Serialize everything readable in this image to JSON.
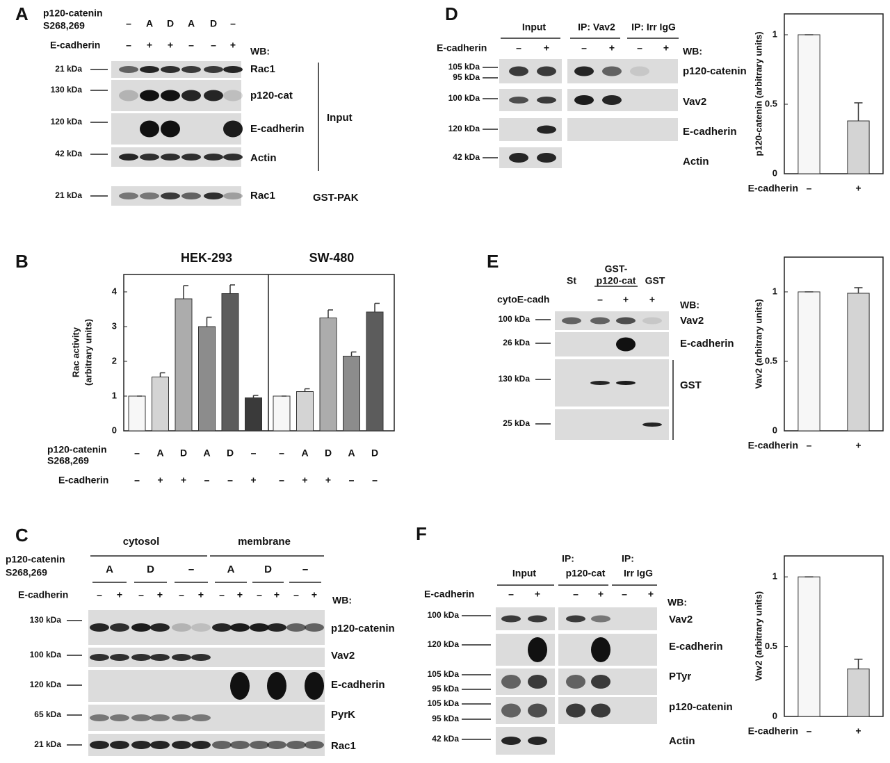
{
  "panels": {
    "A": {
      "letter": "A",
      "mutant_label": [
        "p120-catenin",
        "S268,269"
      ],
      "mutant": [
        "–",
        "A",
        "D",
        "A",
        "D",
        "–"
      ],
      "ecad_label": "E-cadherin",
      "ecad": [
        "–",
        "+",
        "+",
        "–",
        "–",
        "+"
      ],
      "wb": "WB:",
      "mw": [
        "21 kDa",
        "130 kDa",
        "120 kDa",
        "42 kDa",
        "21 kDa"
      ],
      "proteins": [
        "Rac1",
        "p120-cat",
        "E-cadherin",
        "Actin",
        "Rac1"
      ],
      "input": "Input",
      "gst_pak": "GST-PAK"
    },
    "B": {
      "letter": "B"
    },
    "C": {
      "letter": "C",
      "cytosol": "cytosol",
      "membrane": "membrane",
      "mutant_label": [
        "p120-catenin",
        "S268,269"
      ],
      "mutant": [
        "A",
        "D",
        "–",
        "A",
        "D",
        "–"
      ],
      "ecad_label": "E-cadherin",
      "ecad": [
        "–",
        "+",
        "–",
        "+",
        "–",
        "+",
        "–",
        "+",
        "–",
        "+",
        "–",
        "+"
      ],
      "wb": "WB:",
      "mw": [
        "130 kDa",
        "100 kDa",
        "120 kDa",
        "65 kDa",
        "21 kDa"
      ],
      "proteins": [
        "p120-catenin",
        "Vav2",
        "E-cadherin",
        "PyrK",
        "Rac1"
      ]
    },
    "D": {
      "letter": "D",
      "input": "Input",
      "ip_vav2": "IP: Vav2",
      "ip_irr": "IP: Irr IgG",
      "ecad_label": "E-cadherin",
      "ecad": [
        "–",
        "+",
        "–",
        "+",
        "–",
        "+"
      ],
      "wb": "WB:",
      "mw": [
        "105 kDa",
        "95 kDa",
        "100 kDa",
        "120 kDa",
        "42 kDa"
      ],
      "proteins": [
        "p120-catenin",
        "Vav2",
        "E-cadherin",
        "Actin"
      ]
    },
    "E": {
      "letter": "E",
      "st": "St",
      "gst_p120": [
        "GST-",
        "p120-cat"
      ],
      "gst": "GST",
      "cyto_label": "cytoE-cadh",
      "cyto": [
        "–",
        "+",
        "+"
      ],
      "wb": "WB:",
      "mw": [
        "100 kDa",
        "26 kDa",
        "130 kDa",
        "25 kDa"
      ],
      "proteins": [
        "Vav2",
        "E-cadherin",
        "GST"
      ]
    },
    "F": {
      "letter": "F",
      "input": "Input",
      "ip_p120": [
        "IP:",
        "p120-cat"
      ],
      "ip_irr": [
        "IP:",
        "Irr IgG"
      ],
      "ecad_label": "E-cadherin",
      "ecad": [
        "–",
        "+",
        "–",
        "+",
        "–",
        "+"
      ],
      "wb": "WB:",
      "mw": [
        "100 kDa",
        "120 kDa",
        "105 kDa",
        "95 kDa",
        "105 kDa",
        "95 kDa",
        "42 kDa"
      ],
      "proteins": [
        "Vav2",
        "E-cadherin",
        "PTyr",
        "p120-catenin",
        "Actin"
      ]
    }
  },
  "chart_data": [
    {
      "type": "grouped-bar",
      "ylabel": [
        "Rac activity",
        "(arbitrary units)"
      ],
      "ylim": [
        0,
        4.5
      ],
      "yticks": [
        0,
        1,
        2,
        3,
        4
      ],
      "mutant_label": [
        "p120-catenin",
        "S268,269"
      ],
      "ecad_label": "E-cadherin",
      "groups": [
        {
          "name": "HEK-293",
          "values": [
            1,
            1.55,
            3.8,
            3.0,
            3.95,
            0.95
          ],
          "errors": [
            0,
            0.12,
            0.38,
            0.27,
            0.25,
            0.07
          ],
          "colors": [
            "#f7f7f7",
            "#d4d4d4",
            "#acacac",
            "#8c8c8c",
            "#5c5c5c",
            "#3a3a3a"
          ],
          "mutant": [
            "–",
            "A",
            "D",
            "A",
            "D",
            "–"
          ],
          "ecad": [
            "–",
            "+",
            "+",
            "–",
            "–",
            "+"
          ]
        },
        {
          "name": "SW-480",
          "values": [
            1,
            1.13,
            3.25,
            2.15,
            3.42
          ],
          "errors": [
            0,
            0.08,
            0.23,
            0.12,
            0.25
          ],
          "colors": [
            "#f7f7f7",
            "#d4d4d4",
            "#acacac",
            "#8c8c8c",
            "#5c5c5c"
          ],
          "mutant": [
            "–",
            "A",
            "D",
            "A",
            "D"
          ],
          "ecad": [
            "–",
            "+",
            "+",
            "–",
            "–"
          ]
        }
      ]
    },
    {
      "type": "bar",
      "ylabel": "p120-catenin  (arbitrary units)",
      "xlabel": "E-cadherin",
      "categories": [
        "–",
        "+"
      ],
      "values": [
        1,
        0.38
      ],
      "errors": [
        0,
        0.13
      ],
      "colors": [
        "#f7f7f7",
        "#d4d4d4"
      ],
      "ylim": [
        0,
        1.15
      ],
      "yticks": [
        0,
        0.5,
        1
      ]
    },
    {
      "type": "bar",
      "ylabel": "Vav2  (arbitrary units)",
      "xlabel": "E-cadherin",
      "categories": [
        "–",
        "+"
      ],
      "values": [
        1,
        0.99
      ],
      "errors": [
        0,
        0.04
      ],
      "colors": [
        "#f7f7f7",
        "#d4d4d4"
      ],
      "ylim": [
        0,
        1.25
      ],
      "yticks": [
        0,
        0.5,
        1
      ]
    },
    {
      "type": "bar",
      "ylabel": "Vav2  (arbitrary units)",
      "xlabel": "E-cadherin",
      "categories": [
        "–",
        "+"
      ],
      "values": [
        1,
        0.34
      ],
      "errors": [
        0,
        0.07
      ],
      "colors": [
        "#f7f7f7",
        "#d4d4d4"
      ],
      "ylim": [
        0,
        1.15
      ],
      "yticks": [
        0,
        0.5,
        1
      ]
    }
  ]
}
